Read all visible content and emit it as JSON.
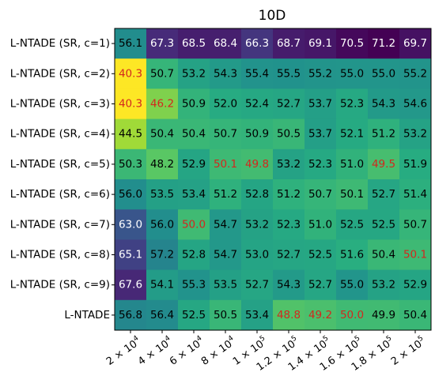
{
  "chart_data": {
    "type": "heatmap",
    "title": "10D",
    "xlabel": "",
    "ylabel": "",
    "rows": [
      "L-NTADE (SR, c=1)",
      "L-NTADE (SR, c=2)",
      "L-NTADE (SR, c=3)",
      "L-NTADE (SR, c=4)",
      "L-NTADE (SR, c=5)",
      "L-NTADE (SR, c=6)",
      "L-NTADE (SR, c=7)",
      "L-NTADE (SR, c=8)",
      "L-NTADE (SR, c=9)",
      "L-NTADE"
    ],
    "columns": [
      {
        "mantissa": "2",
        "power": "4"
      },
      {
        "mantissa": "4",
        "power": "4"
      },
      {
        "mantissa": "6",
        "power": "4"
      },
      {
        "mantissa": "8",
        "power": "4"
      },
      {
        "mantissa": "1",
        "power": "5"
      },
      {
        "mantissa": "1.2",
        "power": "5"
      },
      {
        "mantissa": "1.4",
        "power": "5"
      },
      {
        "mantissa": "1.6",
        "power": "5"
      },
      {
        "mantissa": "1.8",
        "power": "5"
      },
      {
        "mantissa": "2",
        "power": "5"
      }
    ],
    "values": [
      [
        56.1,
        67.3,
        68.5,
        68.4,
        66.3,
        68.7,
        69.1,
        70.5,
        71.2,
        69.7
      ],
      [
        40.3,
        50.7,
        53.2,
        54.3,
        55.4,
        55.5,
        55.2,
        55.0,
        55.0,
        55.2
      ],
      [
        40.3,
        46.2,
        50.9,
        52.0,
        52.4,
        52.7,
        53.7,
        52.3,
        54.3,
        54.6
      ],
      [
        44.5,
        50.4,
        50.4,
        50.7,
        50.9,
        50.5,
        53.7,
        52.1,
        51.2,
        53.2
      ],
      [
        50.3,
        48.2,
        52.9,
        50.1,
        49.8,
        53.2,
        52.3,
        51.0,
        49.5,
        51.9
      ],
      [
        56.0,
        53.5,
        53.4,
        51.2,
        52.8,
        51.2,
        50.7,
        50.1,
        52.7,
        51.4
      ],
      [
        63.0,
        56.0,
        50.0,
        54.7,
        53.2,
        52.3,
        51.0,
        52.5,
        52.5,
        50.7
      ],
      [
        65.1,
        57.2,
        52.8,
        54.7,
        53.0,
        52.7,
        52.5,
        51.6,
        50.4,
        50.1
      ],
      [
        67.6,
        54.1,
        55.3,
        53.5,
        52.7,
        54.3,
        52.7,
        55.0,
        53.2,
        52.9
      ],
      [
        56.8,
        56.4,
        52.5,
        50.5,
        53.4,
        48.8,
        49.2,
        50.0,
        49.9,
        50.4
      ]
    ],
    "highlighted": [
      [
        1,
        0
      ],
      [
        2,
        0
      ],
      [
        2,
        1
      ],
      [
        4,
        3
      ],
      [
        4,
        4
      ],
      [
        4,
        8
      ],
      [
        6,
        2
      ],
      [
        7,
        9
      ],
      [
        9,
        5
      ],
      [
        9,
        6
      ],
      [
        9,
        7
      ]
    ],
    "colormap": "viridis-reversed",
    "color_range": [
      40.3,
      71.2
    ],
    "colors": {
      "text_normal": "#000000",
      "text_on_dark": "#ffffff",
      "text_highlight": "#d2281e"
    },
    "grid": false,
    "legend": "none"
  }
}
